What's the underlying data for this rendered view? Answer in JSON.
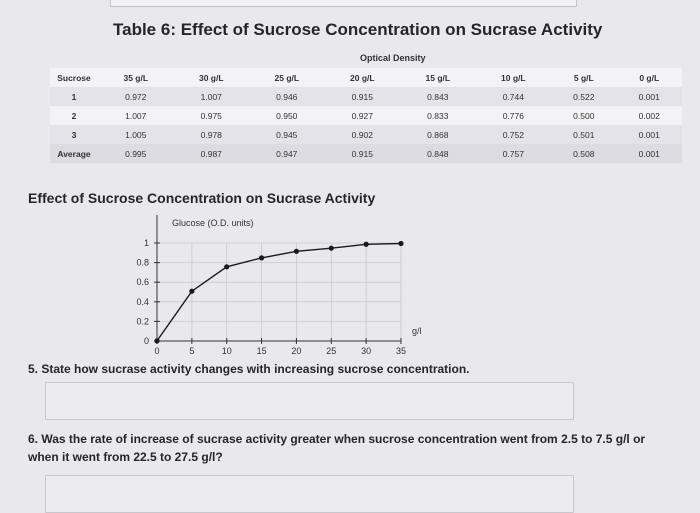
{
  "table": {
    "title": "Table 6: Effect of Sucrose Concentration on Sucrase Activity",
    "group_header": "Optical Density",
    "columns": [
      "Sucrose",
      "35 g/L",
      "30 g/L",
      "25 g/L",
      "20 g/L",
      "15 g/L",
      "10 g/L",
      "5 g/L",
      "0 g/L"
    ],
    "rows": [
      [
        "1",
        "0.972",
        "1.007",
        "0.946",
        "0.915",
        "0.843",
        "0.744",
        "0.522",
        "0.001"
      ],
      [
        "2",
        "1.007",
        "0.975",
        "0.950",
        "0.927",
        "0.833",
        "0.776",
        "0.500",
        "0.002"
      ],
      [
        "3",
        "1.005",
        "0.978",
        "0.945",
        "0.902",
        "0.868",
        "0.752",
        "0.501",
        "0.001"
      ],
      [
        "Average",
        "0.995",
        "0.987",
        "0.947",
        "0.915",
        "0.848",
        "0.757",
        "0.508",
        "0.001"
      ]
    ]
  },
  "chart_data": {
    "type": "line",
    "title": "Effect of Sucrose Concentration on Sucrase Activity",
    "ylabel": "Glucose (O.D. units)",
    "xlabel": "g/l",
    "x": [
      0,
      5,
      10,
      15,
      20,
      25,
      30,
      35
    ],
    "y": [
      0.001,
      0.508,
      0.757,
      0.848,
      0.915,
      0.947,
      0.987,
      0.995
    ],
    "xlim": [
      0,
      35
    ],
    "ylim": [
      0,
      1
    ],
    "xticks": [
      "0",
      "5",
      "10",
      "15",
      "20",
      "25",
      "30",
      "35"
    ],
    "yticks": [
      "0",
      "0.2",
      "0.4",
      "0.6",
      "0.8",
      "1"
    ],
    "grid": true,
    "colors": {
      "line": "#1a1a1a",
      "grid": "#c9c9cd"
    }
  },
  "questions": {
    "q5": "5. State how sucrase activity changes with increasing sucrose concentration.",
    "q6": "6. Was the rate of increase of sucrase activity greater when sucrose concentration went from 2.5 to 7.5 g/l or when it went from 22.5 to 27.5 g/l?"
  }
}
